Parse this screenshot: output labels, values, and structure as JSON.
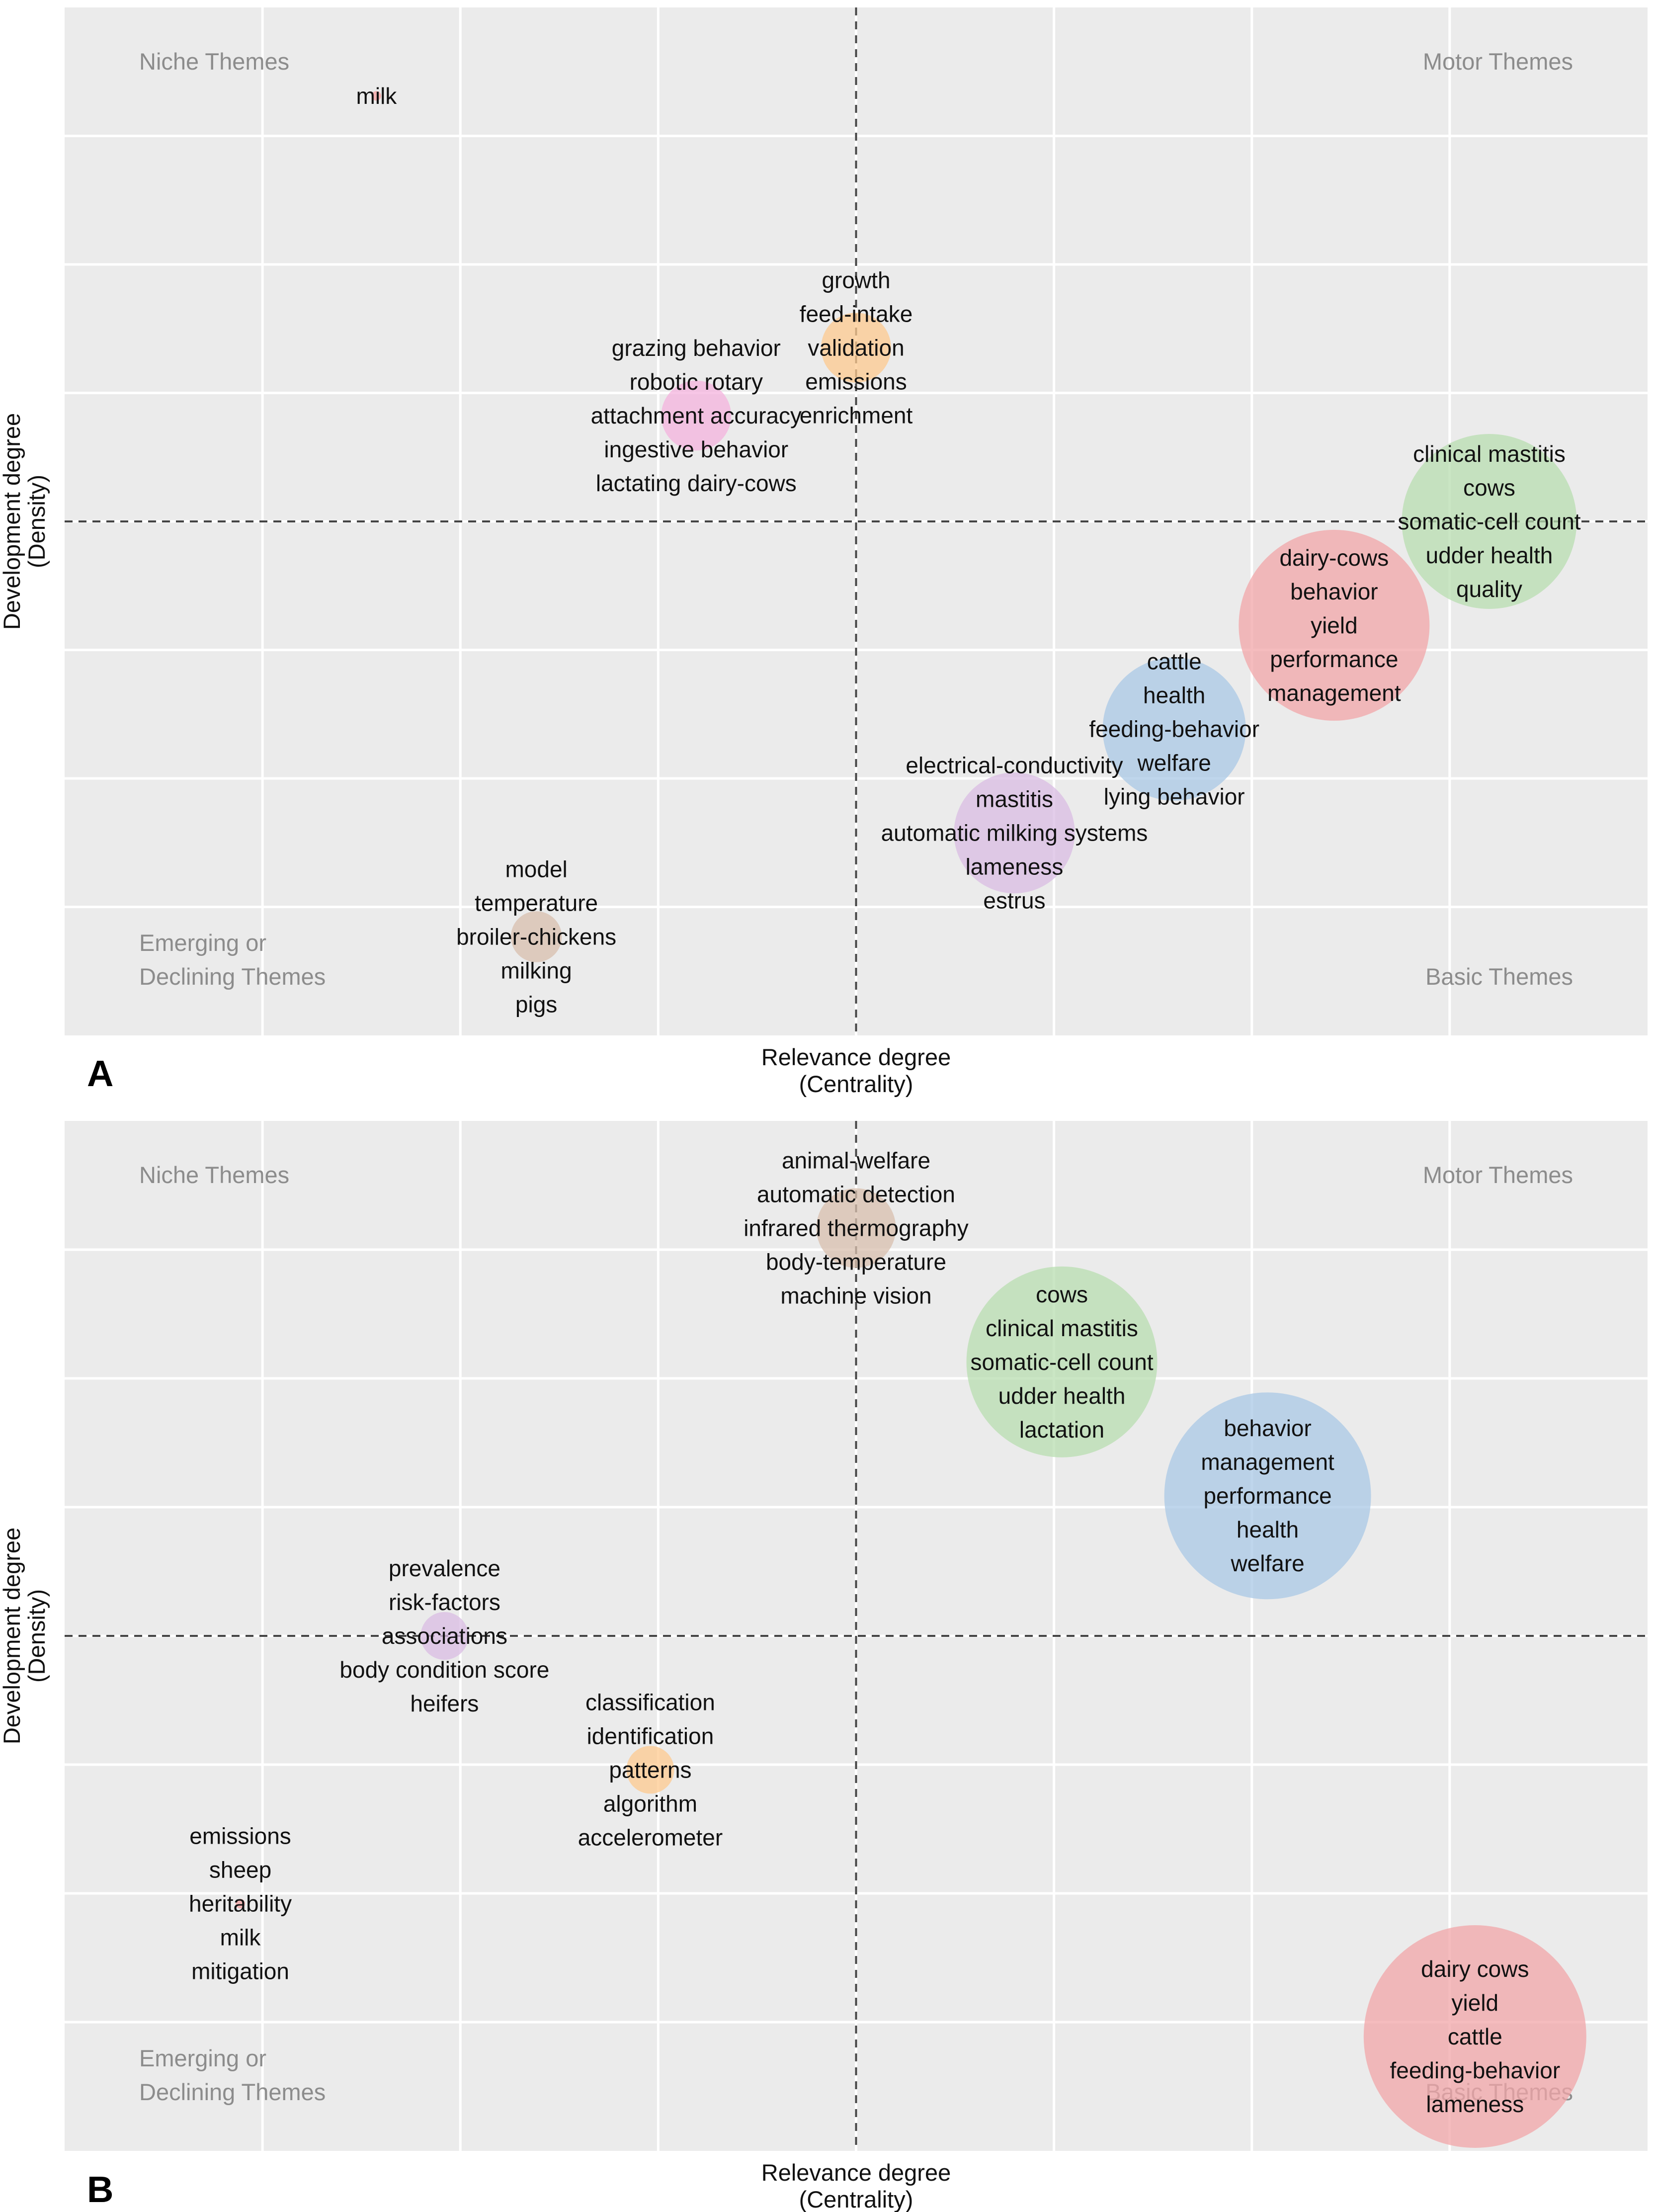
{
  "chart_data": [
    {
      "type": "scatter",
      "panel": "A",
      "xlabel": "Relevance degree",
      "xlabel_sub": "(Centrality)",
      "ylabel": "Development degree",
      "ylabel_sub": "(Density)",
      "xlim": [
        0,
        100
      ],
      "ylim": [
        0,
        100
      ],
      "x_mid": 50,
      "y_mid": 50,
      "quadrants": {
        "top_left": [
          "Niche Themes"
        ],
        "top_right": [
          "Motor Themes"
        ],
        "bottom_left": [
          "Emerging or",
          "Declining Themes"
        ],
        "bottom_right": [
          "Basic Themes"
        ]
      },
      "clusters": [
        {
          "x": 19.7,
          "y": 91.4,
          "size": 0.3,
          "color": "#f4a0a0",
          "words": [
            "milk"
          ]
        },
        {
          "x": 50.0,
          "y": 66.9,
          "size": 2.2,
          "color": "#fdc98f",
          "words": [
            "growth",
            "feed-intake",
            "validation",
            "emissions",
            "enrichment"
          ]
        },
        {
          "x": 39.9,
          "y": 60.3,
          "size": 2.2,
          "color": "#f4b3dd",
          "words": [
            "grazing behavior",
            "robotic rotary",
            "attachment accuracy",
            "ingestive behavior",
            "lactating dairy-cows"
          ]
        },
        {
          "x": 90.0,
          "y": 50.0,
          "size": 5.5,
          "color": "#b8ddb0",
          "words": [
            "clinical mastitis",
            "cows",
            "somatic-cell count",
            "udder health",
            "quality"
          ]
        },
        {
          "x": 80.2,
          "y": 39.9,
          "size": 6.0,
          "color": "#f2a6a8",
          "words": [
            "dairy-cows",
            "behavior",
            "yield",
            "performance",
            "management"
          ]
        },
        {
          "x": 70.1,
          "y": 29.8,
          "size": 4.5,
          "color": "#aac8e6",
          "words": [
            "cattle",
            "health",
            "feeding-behavior",
            "welfare",
            "lying behavior"
          ]
        },
        {
          "x": 60.0,
          "y": 19.7,
          "size": 3.8,
          "color": "#d9bce3",
          "words": [
            "electrical-conductivity",
            "mastitis",
            "automatic milking systems",
            "lameness",
            "estrus"
          ]
        },
        {
          "x": 29.8,
          "y": 9.6,
          "size": 1.6,
          "color": "#d8bfae",
          "words": [
            "model",
            "temperature",
            "broiler-chickens",
            "milking",
            "pigs"
          ]
        }
      ]
    },
    {
      "type": "scatter",
      "panel": "B",
      "xlabel": "Relevance degree",
      "xlabel_sub": "(Centrality)",
      "ylabel": "Development degree",
      "ylabel_sub": "(Density)",
      "xlim": [
        0,
        100
      ],
      "ylim": [
        0,
        100
      ],
      "x_mid": 50,
      "y_mid": 50,
      "quadrants": {
        "top_left": [
          "Niche Themes"
        ],
        "top_right": [
          "Motor Themes"
        ],
        "bottom_left": [
          "Emerging or",
          "Declining Themes"
        ],
        "bottom_right": [
          "Basic Themes"
        ]
      },
      "clusters": [
        {
          "x": 50.0,
          "y": 89.6,
          "size": 2.5,
          "color": "#d8bfae",
          "words": [
            "animal-welfare",
            "automatic detection",
            "infrared thermography",
            "body-temperature",
            "machine vision"
          ]
        },
        {
          "x": 63.0,
          "y": 76.6,
          "size": 6.0,
          "color": "#b8ddb0",
          "words": [
            "cows",
            "clinical mastitis",
            "somatic-cell count",
            "udder health",
            "lactation"
          ]
        },
        {
          "x": 76.0,
          "y": 63.6,
          "size": 6.5,
          "color": "#aac8e6",
          "words": [
            "behavior",
            "management",
            "performance",
            "health",
            "welfare"
          ]
        },
        {
          "x": 24.0,
          "y": 50.0,
          "size": 1.5,
          "color": "#d9bce3",
          "words": [
            "prevalence",
            "risk-factors",
            "associations",
            "body condition score",
            "heifers"
          ]
        },
        {
          "x": 37.0,
          "y": 37.0,
          "size": 1.5,
          "color": "#fdc98f",
          "words": [
            "classification",
            "identification",
            "patterns",
            "algorithm",
            "accelerometer"
          ]
        },
        {
          "x": 11.1,
          "y": 24.0,
          "size": 0.3,
          "color": "#f4a0a0",
          "words": [
            "emissions",
            "sheep",
            "heritability",
            "milk",
            "mitigation"
          ]
        },
        {
          "x": 89.1,
          "y": 11.1,
          "size": 7.0,
          "color": "#f2a6a8",
          "words": [
            "dairy  cows",
            "yield",
            "cattle",
            "feeding-behavior",
            "lameness"
          ]
        }
      ]
    }
  ]
}
